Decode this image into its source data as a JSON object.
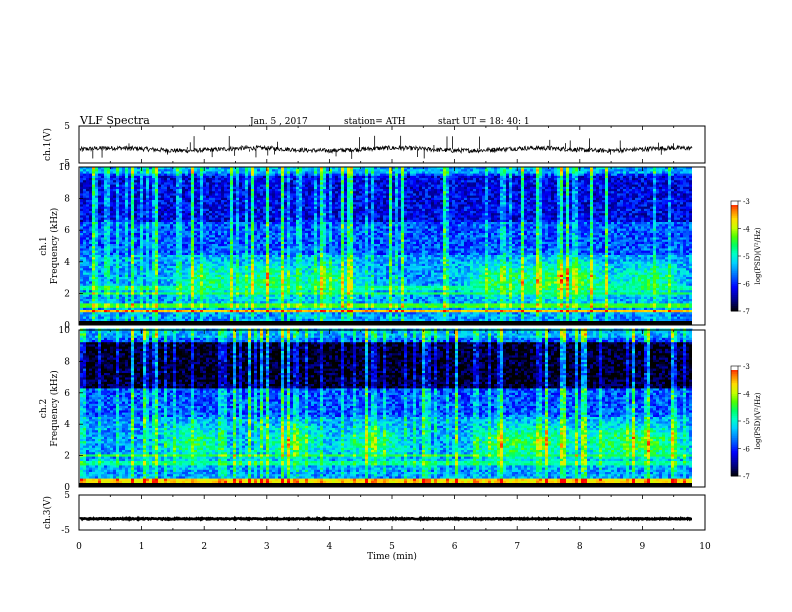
{
  "header": {
    "title": "VLF  Spectra",
    "date": "Jan.  5  , 2017",
    "station": "station= ATH",
    "start": "start  UT  =    18: 40: 1"
  },
  "colorbar_scale": [
    "#000000",
    "#00008b",
    "#0000ff",
    "#0080ff",
    "#00ffff",
    "#00ff80",
    "#40ff00",
    "#c8ff00",
    "#ffff00",
    "#ff8000",
    "#ff0000",
    "#ffffff"
  ],
  "chart_data": [
    {
      "type": "line",
      "ylabel": "ch.1(V)",
      "ylim": [
        -5,
        5
      ],
      "yticks": [
        "5",
        "-5"
      ],
      "xlim": [
        0,
        10
      ],
      "description_values": {
        "baseline": -1.3,
        "noise_amplitude": 0.6,
        "spike_max": 2.5,
        "spike_min": -4
      }
    },
    {
      "type": "heatmap",
      "ylabel": "ch.1\nFrequency  (kHz)",
      "ylim": [
        0,
        10
      ],
      "yticks": [
        "0",
        "2",
        "4",
        "6",
        "8",
        "10"
      ],
      "xlim": [
        0,
        10
      ],
      "colorbar": {
        "label": "log(PSD)(V²/Hz)",
        "ticks": [
          "-3",
          "-4",
          "-5",
          "-6",
          "-7"
        ],
        "range": [
          -7,
          -3
        ]
      },
      "bands": [
        {
          "freq": 0.9,
          "value": -3.6
        },
        {
          "freq": 1.3,
          "value": -4.4
        },
        {
          "freq": 2.0,
          "value": -4.6
        },
        {
          "freq": 2.4,
          "value": -4.8
        }
      ],
      "blobs_minutes": [
        2.0,
        3.0,
        4.0,
        6.6,
        7.4,
        8.0,
        9.1
      ]
    },
    {
      "type": "heatmap",
      "ylabel": "ch.2\nFrequency  (kHz)",
      "ylim": [
        0,
        10
      ],
      "yticks": [
        "0",
        "2",
        "4",
        "6",
        "8",
        "10"
      ],
      "xlim": [
        0,
        10
      ],
      "colorbar": {
        "label": "log(PSD)(V²/Hz)",
        "ticks": [
          "-3",
          "-4",
          "-5",
          "-6",
          "-7"
        ],
        "range": [
          -7,
          -3
        ]
      },
      "bands": [
        {
          "freq": 0.4,
          "value": -3.7
        },
        {
          "freq": 1.5,
          "value": -4.8
        },
        {
          "freq": 2.0,
          "value": -4.5
        }
      ],
      "blobs_minutes": [
        1.8,
        3.4,
        4.7,
        6.7,
        7.4,
        8.5,
        9.2
      ]
    },
    {
      "type": "line",
      "ylabel": "ch.3(V)",
      "ylim": [
        -5,
        5
      ],
      "yticks": [
        "5",
        "-5"
      ],
      "xlim": [
        0,
        10
      ],
      "xlabel": "Time  (min)",
      "xticks": [
        "0",
        "1",
        "2",
        "3",
        "4",
        "5",
        "6",
        "7",
        "8",
        "9",
        "10"
      ],
      "description_values": {
        "baseline": -1.8,
        "noise_amplitude": 0.15
      }
    }
  ]
}
